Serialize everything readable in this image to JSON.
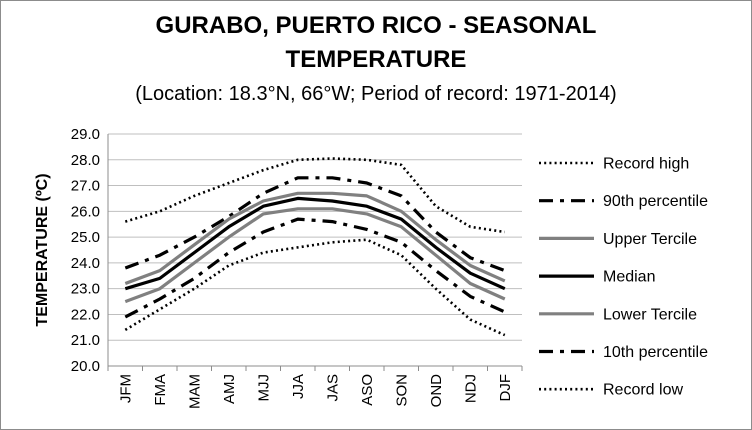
{
  "chart_data": {
    "type": "line",
    "title": "GURABO, PUERTO RICO - SEASONAL TEMPERATURE",
    "title_line1": "GURABO, PUERTO RICO - SEASONAL",
    "title_line2": "TEMPERATURE",
    "subtitle": "(Location: 18.3°N, 66°W; Period of record: 1971-2014)",
    "ylabel": "TEMPERATURE (ºC)",
    "xlabel": "",
    "categories": [
      "JFM",
      "FMA",
      "MAM",
      "AMJ",
      "MJJ",
      "JJA",
      "JAS",
      "ASO",
      "SON",
      "OND",
      "NDJ",
      "DJF"
    ],
    "ylim": [
      20.0,
      29.0
    ],
    "yticks": [
      "29.0",
      "28.0",
      "27.0",
      "26.0",
      "25.0",
      "24.0",
      "23.0",
      "22.0",
      "21.0",
      "20.0"
    ],
    "grid": true,
    "legend_position": "right",
    "series": [
      {
        "name": "Record high",
        "values": [
          25.6,
          26.0,
          26.6,
          27.1,
          27.6,
          28.0,
          28.05,
          28.0,
          27.8,
          26.2,
          25.4,
          25.2
        ],
        "color": "#000000",
        "style": "dotted"
      },
      {
        "name": "90th percentile",
        "values": [
          23.8,
          24.3,
          25.0,
          25.8,
          26.7,
          27.3,
          27.3,
          27.1,
          26.6,
          25.2,
          24.2,
          23.7
        ],
        "color": "#000000",
        "style": "dash-dot"
      },
      {
        "name": "Upper Tercile",
        "values": [
          23.2,
          23.7,
          24.7,
          25.7,
          26.4,
          26.7,
          26.7,
          26.6,
          26.0,
          24.9,
          23.9,
          23.3
        ],
        "color": "#808080",
        "style": "solid"
      },
      {
        "name": "Median",
        "values": [
          23.0,
          23.4,
          24.4,
          25.4,
          26.2,
          26.5,
          26.4,
          26.2,
          25.7,
          24.6,
          23.6,
          23.0
        ],
        "color": "#000000",
        "style": "solid"
      },
      {
        "name": "Lower Tercile",
        "values": [
          22.5,
          23.0,
          24.0,
          25.0,
          25.9,
          26.1,
          26.1,
          25.9,
          25.4,
          24.3,
          23.2,
          22.6
        ],
        "color": "#808080",
        "style": "solid"
      },
      {
        "name": "10th percentile",
        "values": [
          21.9,
          22.6,
          23.4,
          24.4,
          25.2,
          25.7,
          25.6,
          25.3,
          24.8,
          23.7,
          22.7,
          22.1
        ],
        "color": "#000000",
        "style": "dash-dot"
      },
      {
        "name": "Record low",
        "values": [
          21.4,
          22.2,
          23.0,
          23.9,
          24.4,
          24.6,
          24.8,
          24.9,
          24.3,
          23.0,
          21.8,
          21.2
        ],
        "color": "#000000",
        "style": "dotted"
      }
    ]
  }
}
